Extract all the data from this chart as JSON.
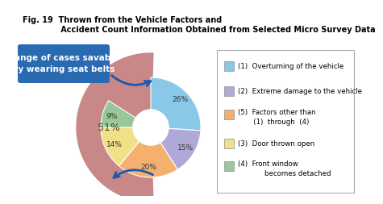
{
  "title_line1": "Fig. 19  Thrown from the Vehicle Factors and",
  "title_line2": "              Accident Count Information Obtained from Selected Micro Survey Data",
  "donut_values": [
    26,
    15,
    20,
    14,
    9
  ],
  "donut_colors": [
    "#8ac8e8",
    "#b0a8d8",
    "#f5b070",
    "#f0e088",
    "#98c898"
  ],
  "donut_labels": [
    "26%",
    "15%",
    "20%",
    "14%",
    "9%"
  ],
  "big_slice_color": "#c88888",
  "big_slice_label": "51%",
  "label_box_text": "Range of cases savable\nby wearing seat belts",
  "label_box_color": "#2a6ab0",
  "legend_items": [
    {
      "color": "#8ac8e8",
      "text1": "(1)  Overturning of the vehicle",
      "text2": ""
    },
    {
      "color": "#b0a8d8",
      "text1": "(2)  Extreme damage to the vehicle",
      "text2": ""
    },
    {
      "color": "#f5b070",
      "text1": "(5)  Factors other than",
      "text2": "       (1)  through  (4)"
    },
    {
      "color": "#f0e088",
      "text1": "(3)  Door thrown open",
      "text2": ""
    },
    {
      "color": "#98c898",
      "text1": "(4)  Front window",
      "text2": "            becomes detached"
    }
  ],
  "background_color": "#ffffff",
  "arrow_color": "#1a5aaa"
}
